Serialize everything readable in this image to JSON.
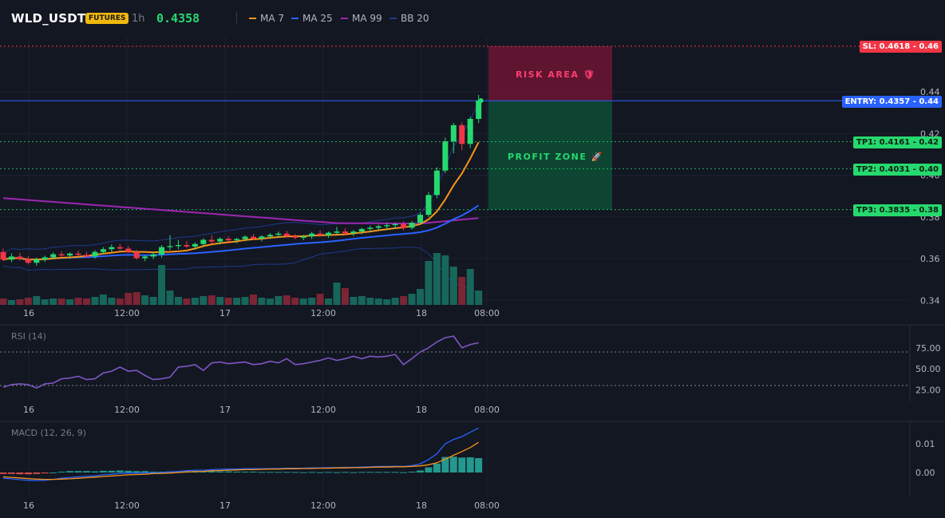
{
  "header": {
    "symbol": "WLD_USDT",
    "badge": "FUTURES",
    "timeframe": "1h",
    "price": "0.4358",
    "indicators": [
      {
        "label": "MA 7",
        "color": "#f7931a"
      },
      {
        "label": "MA 25",
        "color": "#2962ff"
      },
      {
        "label": "MA 99",
        "color": "#9c27b0"
      },
      {
        "label": "BB 20",
        "color": "#1e3a8a"
      }
    ]
  },
  "price_axis": [
    "0.44",
    "0.42",
    "0.40",
    "0.38",
    "0.36",
    "0.34"
  ],
  "time_axis": [
    "16",
    "12:00",
    "17",
    "12:00",
    "18",
    "08:00"
  ],
  "levels": {
    "sl": "SL: 0.4618 - 0.46",
    "entry": "ENTRY: 0.4357 - 0.44",
    "tp1": "TP1: 0.4161 - 0.42",
    "tp2": "TP2: 0.4031 - 0.40",
    "tp3": "TP3: 0.3835 - 0.38"
  },
  "zones": {
    "risk": "RISK AREA 🛡",
    "profit": "PROFIT ZONE 🚀"
  },
  "rsi": {
    "title": "RSI (14)",
    "axis": [
      "75.00",
      "50.00",
      "25.00"
    ],
    "values": [
      28,
      31,
      32,
      31,
      27,
      32,
      33,
      38,
      39,
      41,
      37,
      38,
      45,
      47,
      52,
      47,
      48,
      42,
      37,
      38,
      40,
      52,
      53,
      55,
      48,
      57,
      58,
      56,
      57,
      58,
      55,
      56,
      59,
      57,
      62,
      55,
      56,
      58,
      60,
      63,
      60,
      62,
      65,
      62,
      65,
      64,
      65,
      67,
      55,
      62,
      70,
      75,
      82,
      87,
      89,
      75,
      79,
      81
    ]
  },
  "macd": {
    "title": "MACD (12, 26, 9)",
    "axis": [
      "0.01",
      "0.00"
    ],
    "macd_line": [
      -0.002,
      -0.0022,
      -0.0025,
      -0.0027,
      -0.0028,
      -0.0027,
      -0.0024,
      -0.002,
      -0.0017,
      -0.0015,
      -0.0013,
      -0.0012,
      -0.0008,
      -0.0006,
      -0.0003,
      -0.0002,
      -0.0002,
      -0.0001,
      -0.0001,
      0.0,
      0.0002,
      0.0004,
      0.0006,
      0.0008,
      0.0008,
      0.001,
      0.0011,
      0.0012,
      0.0012,
      0.0013,
      0.0013,
      0.0013,
      0.0014,
      0.0014,
      0.0015,
      0.0015,
      0.0015,
      0.0016,
      0.0016,
      0.0017,
      0.0017,
      0.0018,
      0.0018,
      0.0019,
      0.002,
      0.0021,
      0.0021,
      0.0022,
      0.0021,
      0.0024,
      0.003,
      0.0045,
      0.0065,
      0.01,
      0.0115,
      0.0125,
      0.014,
      0.0155
    ],
    "signal_line": [
      -0.0015,
      -0.0017,
      -0.0019,
      -0.0021,
      -0.0023,
      -0.0024,
      -0.0024,
      -0.0023,
      -0.0022,
      -0.002,
      -0.0018,
      -0.0016,
      -0.0014,
      -0.0012,
      -0.001,
      -0.0008,
      -0.0007,
      -0.0006,
      -0.0004,
      -0.0003,
      -0.0002,
      0.0,
      0.0002,
      0.0003,
      0.0004,
      0.0006,
      0.0007,
      0.0008,
      0.0009,
      0.001,
      0.001,
      0.0011,
      0.0012,
      0.0012,
      0.0013,
      0.0013,
      0.0014,
      0.0014,
      0.0015,
      0.0015,
      0.0016,
      0.0016,
      0.0017,
      0.0017,
      0.0018,
      0.0019,
      0.0019,
      0.002,
      0.002,
      0.0021,
      0.0023,
      0.0027,
      0.0034,
      0.0046,
      0.006,
      0.0073,
      0.0087,
      0.0105
    ]
  },
  "candles": [
    {
      "o": 0.3632,
      "h": 0.3648,
      "l": 0.3588,
      "c": 0.3595
    },
    {
      "o": 0.3595,
      "h": 0.3625,
      "l": 0.3583,
      "c": 0.361
    },
    {
      "o": 0.361,
      "h": 0.3628,
      "l": 0.359,
      "c": 0.3598
    },
    {
      "o": 0.3598,
      "h": 0.3612,
      "l": 0.3572,
      "c": 0.358
    },
    {
      "o": 0.358,
      "h": 0.3604,
      "l": 0.3566,
      "c": 0.3596
    },
    {
      "o": 0.3596,
      "h": 0.3614,
      "l": 0.3584,
      "c": 0.3606
    },
    {
      "o": 0.3606,
      "h": 0.363,
      "l": 0.3596,
      "c": 0.3621
    },
    {
      "o": 0.3621,
      "h": 0.3636,
      "l": 0.3606,
      "c": 0.3615
    },
    {
      "o": 0.3615,
      "h": 0.363,
      "l": 0.3601,
      "c": 0.3624
    },
    {
      "o": 0.3624,
      "h": 0.3638,
      "l": 0.3612,
      "c": 0.3618
    },
    {
      "o": 0.3618,
      "h": 0.3632,
      "l": 0.3604,
      "c": 0.361
    },
    {
      "o": 0.361,
      "h": 0.364,
      "l": 0.36,
      "c": 0.3632
    },
    {
      "o": 0.3632,
      "h": 0.3655,
      "l": 0.362,
      "c": 0.3645
    },
    {
      "o": 0.3645,
      "h": 0.3668,
      "l": 0.3632,
      "c": 0.3655
    },
    {
      "o": 0.3655,
      "h": 0.367,
      "l": 0.364,
      "c": 0.3648
    },
    {
      "o": 0.3648,
      "h": 0.366,
      "l": 0.3626,
      "c": 0.3632
    },
    {
      "o": 0.3632,
      "h": 0.3642,
      "l": 0.3595,
      "c": 0.3602
    },
    {
      "o": 0.3602,
      "h": 0.3616,
      "l": 0.3588,
      "c": 0.361
    },
    {
      "o": 0.361,
      "h": 0.3632,
      "l": 0.3598,
      "c": 0.362
    },
    {
      "o": 0.362,
      "h": 0.3665,
      "l": 0.3605,
      "c": 0.3655
    },
    {
      "o": 0.3655,
      "h": 0.3712,
      "l": 0.364,
      "c": 0.366
    },
    {
      "o": 0.366,
      "h": 0.369,
      "l": 0.3645,
      "c": 0.3665
    },
    {
      "o": 0.3665,
      "h": 0.3685,
      "l": 0.3652,
      "c": 0.3658
    },
    {
      "o": 0.3658,
      "h": 0.3678,
      "l": 0.3642,
      "c": 0.367
    },
    {
      "o": 0.367,
      "h": 0.3698,
      "l": 0.366,
      "c": 0.369
    },
    {
      "o": 0.369,
      "h": 0.3712,
      "l": 0.367,
      "c": 0.3682
    },
    {
      "o": 0.3682,
      "h": 0.3702,
      "l": 0.3668,
      "c": 0.3695
    },
    {
      "o": 0.3695,
      "h": 0.3708,
      "l": 0.368,
      "c": 0.3688
    },
    {
      "o": 0.3688,
      "h": 0.37,
      "l": 0.3674,
      "c": 0.3694
    },
    {
      "o": 0.3694,
      "h": 0.3712,
      "l": 0.3682,
      "c": 0.3705
    },
    {
      "o": 0.3705,
      "h": 0.3718,
      "l": 0.369,
      "c": 0.3696
    },
    {
      "o": 0.3696,
      "h": 0.3712,
      "l": 0.3682,
      "c": 0.3706
    },
    {
      "o": 0.3706,
      "h": 0.3722,
      "l": 0.3694,
      "c": 0.3714
    },
    {
      "o": 0.3714,
      "h": 0.373,
      "l": 0.37,
      "c": 0.372
    },
    {
      "o": 0.372,
      "h": 0.3733,
      "l": 0.3703,
      "c": 0.3708
    },
    {
      "o": 0.3708,
      "h": 0.3718,
      "l": 0.3692,
      "c": 0.37
    },
    {
      "o": 0.37,
      "h": 0.3714,
      "l": 0.3688,
      "c": 0.3706
    },
    {
      "o": 0.3706,
      "h": 0.3728,
      "l": 0.3694,
      "c": 0.372
    },
    {
      "o": 0.372,
      "h": 0.3735,
      "l": 0.3705,
      "c": 0.3712
    },
    {
      "o": 0.3712,
      "h": 0.373,
      "l": 0.37,
      "c": 0.3724
    },
    {
      "o": 0.3724,
      "h": 0.3752,
      "l": 0.3715,
      "c": 0.373
    },
    {
      "o": 0.373,
      "h": 0.3745,
      "l": 0.3714,
      "c": 0.3722
    },
    {
      "o": 0.3722,
      "h": 0.3738,
      "l": 0.3708,
      "c": 0.373
    },
    {
      "o": 0.373,
      "h": 0.3748,
      "l": 0.3716,
      "c": 0.3742
    },
    {
      "o": 0.3742,
      "h": 0.3758,
      "l": 0.3728,
      "c": 0.3748
    },
    {
      "o": 0.3748,
      "h": 0.3762,
      "l": 0.3735,
      "c": 0.3755
    },
    {
      "o": 0.3755,
      "h": 0.377,
      "l": 0.374,
      "c": 0.376
    },
    {
      "o": 0.376,
      "h": 0.3772,
      "l": 0.3745,
      "c": 0.3765
    },
    {
      "o": 0.3765,
      "h": 0.3778,
      "l": 0.3735,
      "c": 0.3748
    },
    {
      "o": 0.3748,
      "h": 0.378,
      "l": 0.374,
      "c": 0.3772
    },
    {
      "o": 0.3772,
      "h": 0.382,
      "l": 0.3762,
      "c": 0.381
    },
    {
      "o": 0.381,
      "h": 0.392,
      "l": 0.38,
      "c": 0.3905
    },
    {
      "o": 0.3905,
      "h": 0.4038,
      "l": 0.389,
      "c": 0.4022
    },
    {
      "o": 0.4022,
      "h": 0.418,
      "l": 0.401,
      "c": 0.4162
    },
    {
      "o": 0.4162,
      "h": 0.425,
      "l": 0.4105,
      "c": 0.424
    },
    {
      "o": 0.424,
      "h": 0.4255,
      "l": 0.412,
      "c": 0.415
    },
    {
      "o": 0.415,
      "h": 0.428,
      "l": 0.413,
      "c": 0.427
    },
    {
      "o": 0.427,
      "h": 0.4385,
      "l": 0.425,
      "c": 0.4358
    }
  ],
  "volumes": [
    8,
    6,
    7,
    9,
    11,
    7,
    8,
    8,
    7,
    9,
    8,
    10,
    13,
    9,
    8,
    15,
    16,
    12,
    10,
    50,
    18,
    10,
    8,
    9,
    11,
    12,
    10,
    9,
    9,
    10,
    13,
    9,
    8,
    11,
    12,
    9,
    8,
    9,
    14,
    8,
    28,
    21,
    10,
    11,
    9,
    8,
    7,
    9,
    11,
    14,
    20,
    55,
    65,
    62,
    48,
    35,
    45,
    18
  ]
}
